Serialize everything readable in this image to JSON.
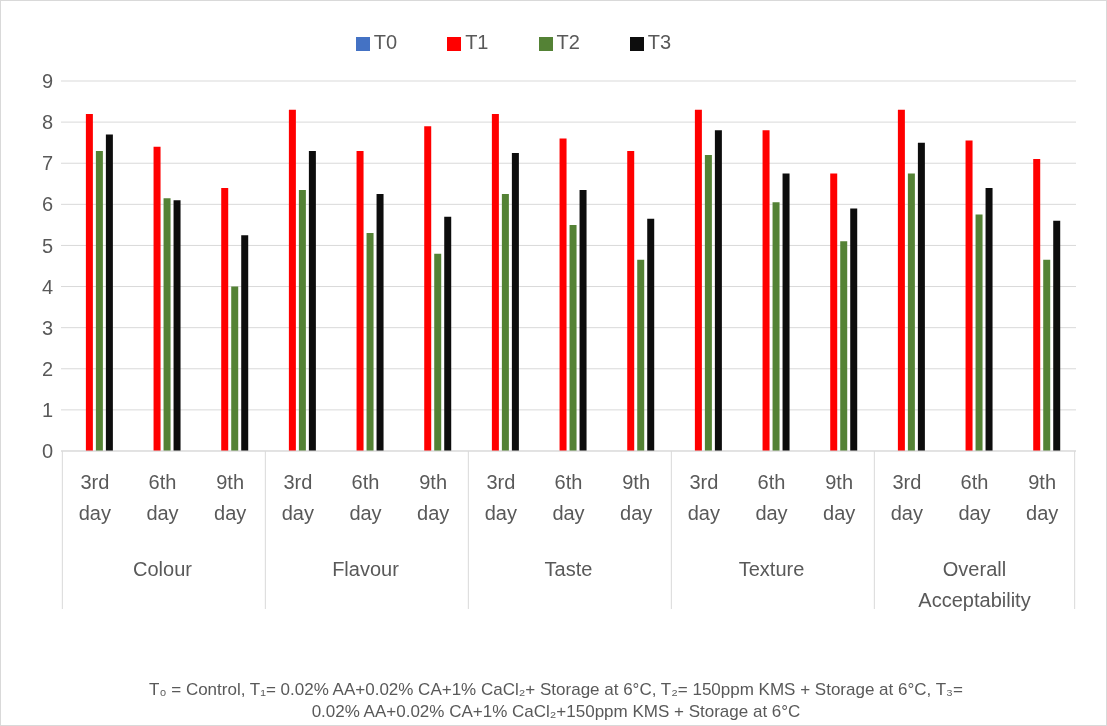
{
  "chart_data": {
    "type": "bar",
    "categories": [
      "3rd day",
      "6th day",
      "9th day",
      "3rd day",
      "6th day",
      "9th day",
      "3rd day",
      "6th day",
      "9th day",
      "3rd day",
      "6th day",
      "9th day",
      "3rd day",
      "6th day",
      "9th day"
    ],
    "series": [
      {
        "name": "T0",
        "color": "#4472c4",
        "values": [
          null,
          null,
          null,
          null,
          null,
          null,
          null,
          null,
          null,
          null,
          null,
          null,
          null,
          null,
          null
        ]
      },
      {
        "name": "T1",
        "color": "#ff0000",
        "values": [
          8.2,
          7.4,
          6.4,
          8.3,
          7.3,
          7.9,
          8.2,
          7.6,
          7.3,
          8.3,
          7.8,
          6.75,
          8.3,
          7.55,
          7.1
        ]
      },
      {
        "name": "T2",
        "color": "#548235",
        "values": [
          7.3,
          6.15,
          4.0,
          6.35,
          5.3,
          4.8,
          6.25,
          5.5,
          4.65,
          7.2,
          6.05,
          5.1,
          6.75,
          5.75,
          4.65
        ]
      },
      {
        "name": "T3",
        "color": "#0d0d0d",
        "values": [
          7.7,
          6.1,
          5.25,
          7.3,
          6.25,
          5.7,
          7.25,
          6.35,
          5.65,
          7.8,
          6.75,
          5.9,
          7.5,
          6.4,
          5.6
        ]
      }
    ],
    "ylim": [
      0,
      9
    ],
    "yticks": [
      0,
      1,
      2,
      3,
      4,
      5,
      6,
      7,
      8,
      9
    ],
    "grid": "y",
    "legend": "top",
    "annotations": [
      "Colour",
      "Flavour",
      "Taste",
      "Texture",
      "Overall Acceptability",
      "T₀ = Control, T₁= 0.02% AA+0.02% CA+1% CaCl₂+ Storage at 6°C, T₂= 150ppm KMS + Storage at 6°C, T₃= 0.02% AA+0.02% CA+1% CaCl₂+150ppm KMS + Storage at 6°C"
    ]
  }
}
